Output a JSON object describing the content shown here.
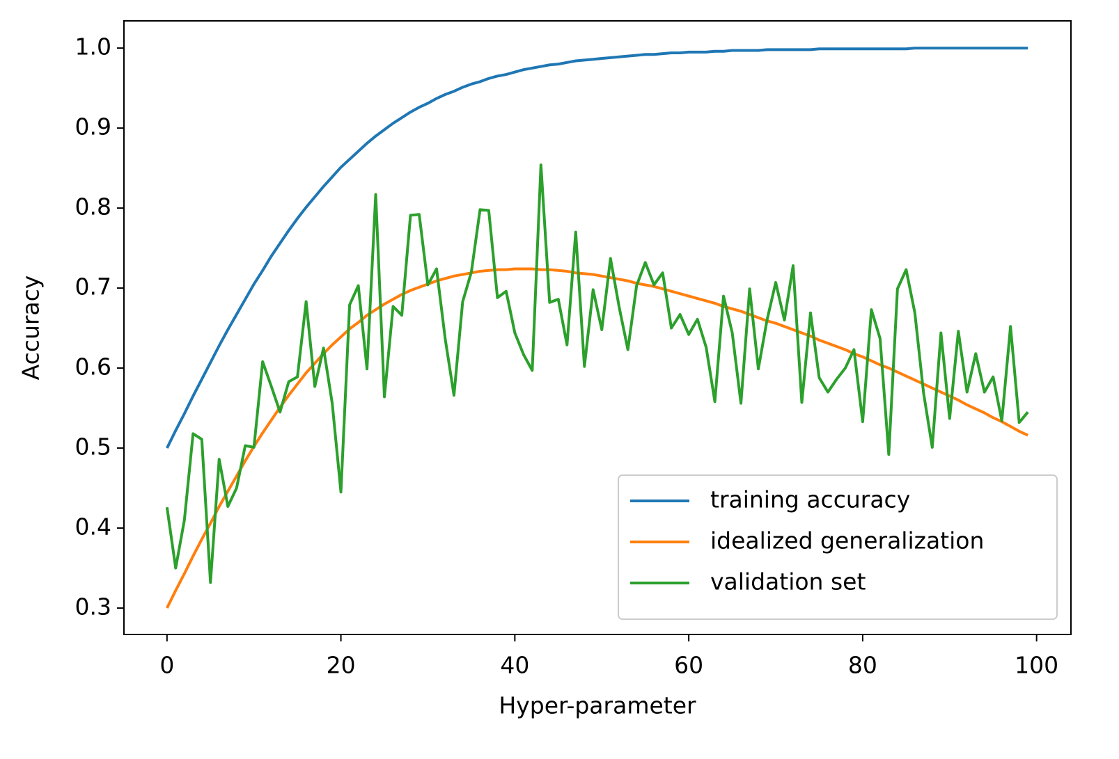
{
  "chart_data": {
    "type": "line",
    "xlabel": "Hyper-parameter",
    "ylabel": "Accuracy",
    "xlim": [
      -4.95,
      103.95
    ],
    "ylim": [
      0.267,
      1.034
    ],
    "xticks": [
      0,
      20,
      40,
      60,
      80,
      100
    ],
    "yticks": [
      0.3,
      0.4,
      0.5,
      0.6,
      0.7,
      0.8,
      0.9,
      {
        "value": 1,
        "label": "1.0"
      }
    ],
    "grid": false,
    "legend": "lower right",
    "x": [
      0,
      1,
      2,
      3,
      4,
      5,
      6,
      7,
      8,
      9,
      10,
      11,
      12,
      13,
      14,
      15,
      16,
      17,
      18,
      19,
      20,
      21,
      22,
      23,
      24,
      25,
      26,
      27,
      28,
      29,
      30,
      31,
      32,
      33,
      34,
      35,
      36,
      37,
      38,
      39,
      40,
      41,
      42,
      43,
      44,
      45,
      46,
      47,
      48,
      49,
      50,
      51,
      52,
      53,
      54,
      55,
      56,
      57,
      58,
      59,
      60,
      61,
      62,
      63,
      64,
      65,
      66,
      67,
      68,
      69,
      70,
      71,
      72,
      73,
      74,
      75,
      76,
      77,
      78,
      79,
      80,
      81,
      82,
      83,
      84,
      85,
      86,
      87,
      88,
      89,
      90,
      91,
      92,
      93,
      94,
      95,
      96,
      97,
      98,
      99
    ],
    "series": [
      {
        "name": "training accuracy",
        "color": "#1f77b4",
        "values": [
          0.5,
          0.522,
          0.543,
          0.565,
          0.586,
          0.607,
          0.628,
          0.648,
          0.667,
          0.686,
          0.705,
          0.722,
          0.74,
          0.756,
          0.772,
          0.787,
          0.801,
          0.814,
          0.827,
          0.839,
          0.851,
          0.861,
          0.871,
          0.881,
          0.89,
          0.898,
          0.906,
          0.913,
          0.92,
          0.926,
          0.931,
          0.937,
          0.942,
          0.946,
          0.951,
          0.955,
          0.958,
          0.962,
          0.965,
          0.967,
          0.97,
          0.973,
          0.975,
          0.977,
          0.979,
          0.98,
          0.982,
          0.984,
          0.985,
          0.986,
          0.987,
          0.988,
          0.989,
          0.99,
          0.991,
          0.992,
          0.992,
          0.993,
          0.994,
          0.994,
          0.995,
          0.995,
          0.995,
          0.996,
          0.996,
          0.997,
          0.997,
          0.997,
          0.997,
          0.998,
          0.998,
          0.998,
          0.998,
          0.998,
          0.998,
          0.999,
          0.999,
          0.999,
          0.999,
          0.999,
          0.999,
          0.999,
          0.999,
          0.999,
          0.999,
          0.999,
          1.0,
          1.0,
          1.0,
          1.0,
          1.0,
          1.0,
          1.0,
          1.0,
          1.0,
          1.0,
          1.0,
          1.0,
          1.0,
          1.0
        ]
      },
      {
        "name": "idealized generalization",
        "color": "#ff7f0e",
        "values": [
          0.3,
          0.322,
          0.343,
          0.365,
          0.386,
          0.406,
          0.427,
          0.446,
          0.465,
          0.484,
          0.502,
          0.519,
          0.535,
          0.551,
          0.566,
          0.58,
          0.594,
          0.606,
          0.618,
          0.629,
          0.639,
          0.649,
          0.657,
          0.666,
          0.673,
          0.68,
          0.686,
          0.692,
          0.697,
          0.701,
          0.705,
          0.709,
          0.712,
          0.715,
          0.717,
          0.719,
          0.721,
          0.722,
          0.723,
          0.723,
          0.724,
          0.724,
          0.724,
          0.723,
          0.723,
          0.722,
          0.721,
          0.719,
          0.718,
          0.717,
          0.715,
          0.713,
          0.711,
          0.709,
          0.706,
          0.704,
          0.702,
          0.699,
          0.696,
          0.693,
          0.69,
          0.687,
          0.684,
          0.681,
          0.677,
          0.674,
          0.671,
          0.667,
          0.663,
          0.659,
          0.656,
          0.652,
          0.648,
          0.644,
          0.64,
          0.635,
          0.631,
          0.627,
          0.623,
          0.618,
          0.614,
          0.609,
          0.604,
          0.6,
          0.595,
          0.59,
          0.585,
          0.58,
          0.575,
          0.57,
          0.565,
          0.56,
          0.554,
          0.549,
          0.544,
          0.538,
          0.533,
          0.527,
          0.521,
          0.516
        ]
      },
      {
        "name": "validation set",
        "color": "#2ca02c",
        "values": [
          0.426,
          0.35,
          0.41,
          0.518,
          0.511,
          0.332,
          0.486,
          0.427,
          0.45,
          0.503,
          0.501,
          0.608,
          0.577,
          0.545,
          0.583,
          0.589,
          0.683,
          0.577,
          0.625,
          0.556,
          0.445,
          0.679,
          0.703,
          0.599,
          0.817,
          0.564,
          0.677,
          0.666,
          0.791,
          0.792,
          0.704,
          0.724,
          0.636,
          0.566,
          0.683,
          0.72,
          0.798,
          0.797,
          0.688,
          0.696,
          0.644,
          0.617,
          0.597,
          0.854,
          0.682,
          0.686,
          0.629,
          0.77,
          0.602,
          0.698,
          0.648,
          0.737,
          0.676,
          0.623,
          0.703,
          0.732,
          0.704,
          0.719,
          0.65,
          0.667,
          0.642,
          0.661,
          0.626,
          0.558,
          0.69,
          0.644,
          0.556,
          0.699,
          0.599,
          0.66,
          0.707,
          0.66,
          0.728,
          0.557,
          0.669,
          0.588,
          0.57,
          0.586,
          0.6,
          0.623,
          0.533,
          0.673,
          0.637,
          0.492,
          0.699,
          0.723,
          0.669,
          0.569,
          0.501,
          0.644,
          0.537,
          0.646,
          0.57,
          0.618,
          0.57,
          0.589,
          0.534,
          0.652,
          0.532,
          0.545
        ]
      }
    ]
  }
}
